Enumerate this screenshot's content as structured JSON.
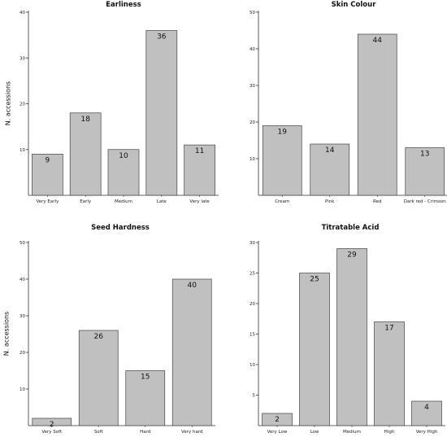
{
  "chart_data": [
    {
      "type": "bar",
      "title": "Earliness",
      "ylabel": "N. accessions",
      "categories": [
        "Very Early",
        "Early",
        "Medium",
        "Late",
        "Very late"
      ],
      "values": [
        9,
        18,
        10,
        36,
        11
      ],
      "ylim": [
        0,
        40
      ],
      "yticks": [
        10,
        20,
        30,
        40
      ],
      "grid": false,
      "bar_color": "#c0c0c0"
    },
    {
      "type": "bar",
      "title": "Skin Colour",
      "ylabel": "",
      "categories": [
        "Cream",
        "Pink",
        "Red",
        "Dark red - Crimson"
      ],
      "values": [
        19,
        14,
        44,
        13
      ],
      "ylim": [
        0,
        50
      ],
      "yticks": [
        10,
        20,
        30,
        40,
        50
      ],
      "grid": false,
      "bar_color": "#c0c0c0"
    },
    {
      "type": "bar",
      "title": "Seed Hardness",
      "ylabel": "N. accessions",
      "categories": [
        "Very Soft",
        "Soft",
        "Hard",
        "Very hard"
      ],
      "values": [
        2,
        26,
        15,
        40
      ],
      "ylim": [
        0,
        50
      ],
      "yticks": [
        10,
        20,
        30,
        40,
        50
      ],
      "grid": false,
      "bar_color": "#c0c0c0"
    },
    {
      "type": "bar",
      "title": "Titratable Acid",
      "ylabel": "",
      "categories": [
        "Very Low",
        "Low",
        "Medium",
        "High",
        "Very High"
      ],
      "values": [
        2,
        25,
        29,
        17,
        4
      ],
      "ylim": [
        0,
        30
      ],
      "yticks": [
        5,
        10,
        15,
        20,
        25,
        30
      ],
      "grid": false,
      "bar_color": "#c0c0c0"
    }
  ]
}
